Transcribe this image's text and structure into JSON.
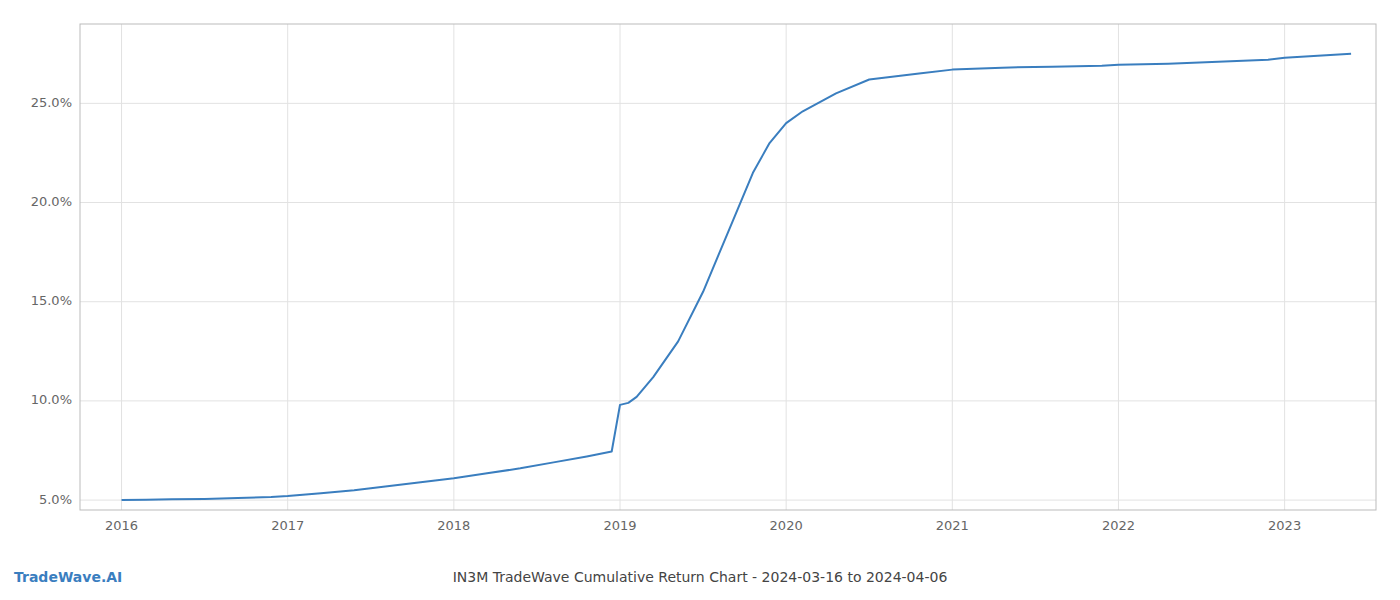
{
  "chart_data": {
    "type": "line",
    "title": "IN3M TradeWave Cumulative Return Chart - 2024-03-16 to 2024-04-06",
    "annotations": [
      "TradeWave.AI"
    ],
    "color": "#3a7ebf",
    "grid": true,
    "x": [
      2016.0,
      2016.15,
      2016.3,
      2016.5,
      2016.7,
      2016.9,
      2017.0,
      2017.2,
      2017.4,
      2017.6,
      2017.8,
      2018.0,
      2018.2,
      2018.4,
      2018.6,
      2018.8,
      2018.95,
      2019.0,
      2019.05,
      2019.1,
      2019.2,
      2019.35,
      2019.5,
      2019.65,
      2019.8,
      2019.9,
      2020.0,
      2020.1,
      2020.3,
      2020.5,
      2020.8,
      2021.0,
      2021.3,
      2021.6,
      2021.9,
      2022.0,
      2022.3,
      2022.6,
      2022.9,
      2023.0,
      2023.2,
      2023.4
    ],
    "values": [
      5.0,
      5.02,
      5.04,
      5.06,
      5.1,
      5.15,
      5.2,
      5.35,
      5.5,
      5.7,
      5.9,
      6.1,
      6.35,
      6.6,
      6.9,
      7.2,
      7.45,
      9.8,
      9.9,
      10.2,
      11.2,
      13.0,
      15.5,
      18.5,
      21.5,
      23.0,
      24.0,
      24.6,
      25.5,
      26.2,
      26.5,
      26.7,
      26.8,
      26.85,
      26.9,
      26.95,
      27.0,
      27.1,
      27.2,
      27.3,
      27.4,
      27.5
    ],
    "xlim": [
      2015.75,
      2023.55
    ],
    "xticks": [
      2016,
      2017,
      2018,
      2019,
      2020,
      2021,
      2022,
      2023
    ],
    "ylim": [
      4.5,
      29.0
    ],
    "yticks": [
      {
        "value": 5.0,
        "label": "5.0%"
      },
      {
        "value": 10.0,
        "label": "10.0%"
      },
      {
        "value": 15.0,
        "label": "15.0%"
      },
      {
        "value": 20.0,
        "label": "20.0%"
      },
      {
        "value": 25.0,
        "label": "25.0%"
      }
    ]
  }
}
